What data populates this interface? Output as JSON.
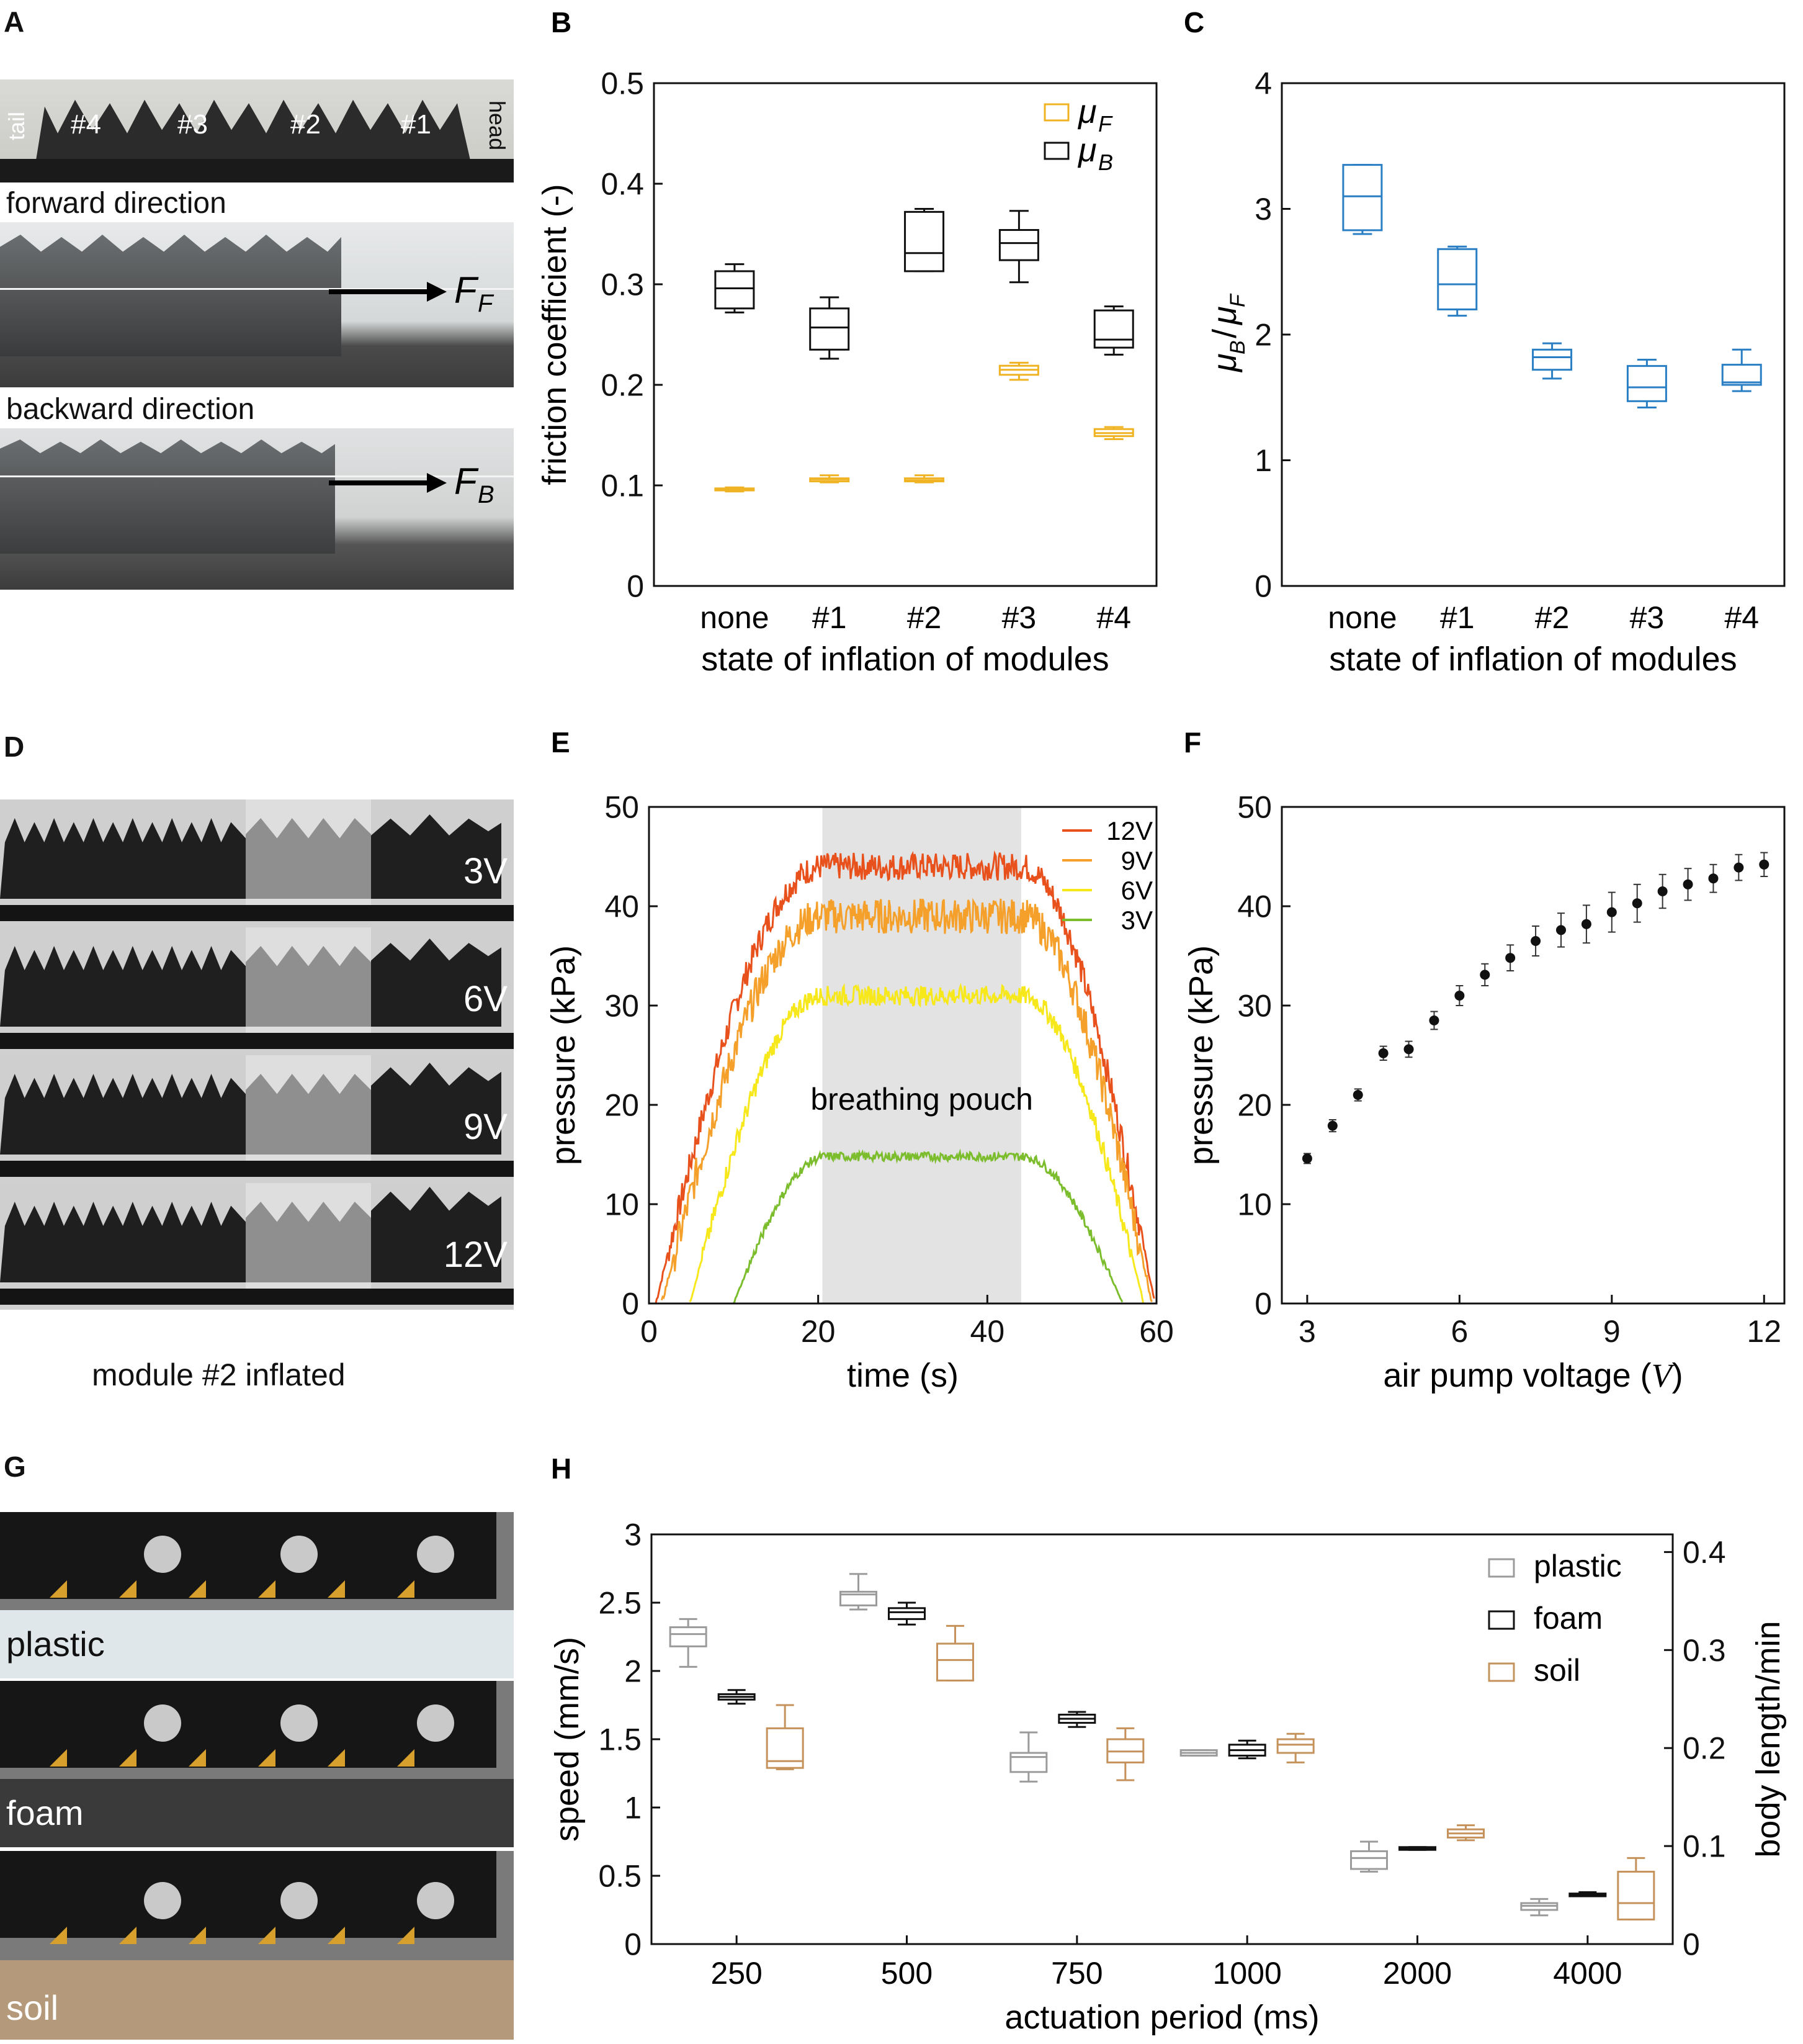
{
  "panels": {
    "A": {
      "letter": "A",
      "labels": {
        "tail": "tail",
        "head": "head",
        "m4": "#4",
        "m3": "#3",
        "m2": "#2",
        "m1": "#1",
        "forward": "forward direction",
        "backward": "backward direction",
        "ff_sym": "F",
        "ff_sub": "F",
        "fb_sym": "F",
        "fb_sub": "B"
      }
    },
    "D": {
      "letter": "D",
      "rows": [
        "3V",
        "6V",
        "9V",
        "12V"
      ],
      "caption": "module #2 inflated"
    },
    "G": {
      "letter": "G",
      "rows": [
        "plastic",
        "foam",
        "soil"
      ]
    }
  },
  "chart_data": [
    {
      "id": "B",
      "letter": "B",
      "type": "box",
      "xlabel": "state of inflation of modules",
      "ylabel": "friction coefficient (-)",
      "categories": [
        "none",
        "#1",
        "#2",
        "#3",
        "#4"
      ],
      "ylim": [
        0,
        0.5
      ],
      "yticks": [
        "0",
        "0.1",
        "0.2",
        "0.3",
        "0.4",
        "0.5"
      ],
      "ytick_values": [
        0,
        0.1,
        0.2,
        0.3,
        0.4,
        0.5
      ],
      "legend": [
        {
          "sym": "μ",
          "sub": "F",
          "color": "#f0b323"
        },
        {
          "sym": "μ",
          "sub": "B",
          "color": "#111111"
        }
      ],
      "legend_position": "top-right",
      "series": [
        {
          "color": "#f0b323",
          "boxes": [
            {
              "min": 0.094,
              "q1": 0.095,
              "med": 0.096,
              "q3": 0.097,
              "max": 0.098
            },
            {
              "min": 0.103,
              "q1": 0.104,
              "med": 0.106,
              "q3": 0.107,
              "max": 0.11
            },
            {
              "min": 0.103,
              "q1": 0.104,
              "med": 0.105,
              "q3": 0.107,
              "max": 0.11
            },
            {
              "min": 0.205,
              "q1": 0.21,
              "med": 0.215,
              "q3": 0.219,
              "max": 0.222
            },
            {
              "min": 0.146,
              "q1": 0.149,
              "med": 0.152,
              "q3": 0.156,
              "max": 0.158
            }
          ]
        },
        {
          "color": "#111111",
          "boxes": [
            {
              "min": 0.272,
              "q1": 0.276,
              "med": 0.296,
              "q3": 0.313,
              "max": 0.32
            },
            {
              "min": 0.226,
              "q1": 0.235,
              "med": 0.257,
              "q3": 0.276,
              "max": 0.287
            },
            {
              "min": 0.313,
              "q1": 0.313,
              "med": 0.331,
              "q3": 0.372,
              "max": 0.375
            },
            {
              "min": 0.302,
              "q1": 0.324,
              "med": 0.341,
              "q3": 0.354,
              "max": 0.373
            },
            {
              "min": 0.23,
              "q1": 0.237,
              "med": 0.245,
              "q3": 0.274,
              "max": 0.278
            }
          ]
        }
      ]
    },
    {
      "id": "C",
      "letter": "C",
      "type": "box",
      "xlabel": "state of inflation of modules",
      "ylabel_sym": "μ",
      "ylabel_num_sub": "B",
      "ylabel_den_sub": "F",
      "categories": [
        "none",
        "#1",
        "#2",
        "#3",
        "#4"
      ],
      "ylim": [
        0,
        4
      ],
      "yticks": [
        "0",
        "1",
        "2",
        "3",
        "4"
      ],
      "ytick_values": [
        0,
        1,
        2,
        3,
        4
      ],
      "series": [
        {
          "color": "#2a7fc4",
          "boxes": [
            {
              "min": 2.8,
              "q1": 2.83,
              "med": 3.1,
              "q3": 3.35,
              "max": 3.35
            },
            {
              "min": 2.15,
              "q1": 2.2,
              "med": 2.4,
              "q3": 2.68,
              "max": 2.7
            },
            {
              "min": 1.65,
              "q1": 1.72,
              "med": 1.82,
              "q3": 1.88,
              "max": 1.93
            },
            {
              "min": 1.42,
              "q1": 1.47,
              "med": 1.58,
              "q3": 1.75,
              "max": 1.8
            },
            {
              "min": 1.55,
              "q1": 1.6,
              "med": 1.62,
              "q3": 1.76,
              "max": 1.88
            }
          ]
        }
      ]
    },
    {
      "id": "E",
      "letter": "E",
      "type": "line",
      "xlabel": "time (s)",
      "ylabel": "pressure (kPa)",
      "xlim": [
        0,
        60
      ],
      "ylim": [
        0,
        50
      ],
      "xticks": [
        "0",
        "20",
        "40",
        "60"
      ],
      "xtick_values": [
        0,
        20,
        40,
        60
      ],
      "yticks": [
        "0",
        "10",
        "20",
        "30",
        "40",
        "50"
      ],
      "ytick_values": [
        0,
        10,
        20,
        30,
        40,
        50
      ],
      "shaded_region": {
        "x0": 20.5,
        "x1": 44,
        "label": "breathing pouch"
      },
      "legend_position": "top-right",
      "series": [
        {
          "name": "12V",
          "color": "#e8501c",
          "plateau": 44,
          "noise": 1.4,
          "t_start": 0.8,
          "t_rise": 20.5,
          "t_fall": 44,
          "t_end": 59.8
        },
        {
          "name": "9V",
          "color": "#f5a02a",
          "plateau": 39,
          "noise": 1.8,
          "t_start": 1.5,
          "t_rise": 20.5,
          "t_fall": 44,
          "t_end": 59.5
        },
        {
          "name": "6V",
          "color": "#f7e81c",
          "plateau": 31,
          "noise": 1.0,
          "t_start": 4.8,
          "t_rise": 20.5,
          "t_fall": 44,
          "t_end": 58.5
        },
        {
          "name": "3V",
          "color": "#7bbd2c",
          "plateau": 14.8,
          "noise": 0.45,
          "t_start": 10,
          "t_rise": 21,
          "t_fall": 44,
          "t_end": 56
        }
      ]
    },
    {
      "id": "F",
      "letter": "F",
      "type": "scatter",
      "xlabel_text": "air pump voltage (",
      "xlabel_var": "V",
      "xlabel_close": ")",
      "ylabel": "pressure (kPa)",
      "xlim": [
        2.5,
        12.4
      ],
      "ylim": [
        0,
        50
      ],
      "xticks": [
        "3",
        "6",
        "9",
        "12"
      ],
      "xtick_values": [
        3,
        6,
        9,
        12
      ],
      "yticks": [
        "0",
        "10",
        "20",
        "30",
        "40",
        "50"
      ],
      "ytick_values": [
        0,
        10,
        20,
        30,
        40,
        50
      ],
      "points": [
        {
          "x": 3.0,
          "y": 14.6,
          "err": 0.5
        },
        {
          "x": 3.5,
          "y": 17.9,
          "err": 0.6
        },
        {
          "x": 4.0,
          "y": 21.0,
          "err": 0.6
        },
        {
          "x": 4.5,
          "y": 25.2,
          "err": 0.7
        },
        {
          "x": 5.0,
          "y": 25.6,
          "err": 0.8
        },
        {
          "x": 5.5,
          "y": 28.5,
          "err": 0.9
        },
        {
          "x": 6.0,
          "y": 31.0,
          "err": 1.0
        },
        {
          "x": 6.5,
          "y": 33.1,
          "err": 1.1
        },
        {
          "x": 7.0,
          "y": 34.8,
          "err": 1.3
        },
        {
          "x": 7.5,
          "y": 36.5,
          "err": 1.5
        },
        {
          "x": 8.0,
          "y": 37.6,
          "err": 1.7
        },
        {
          "x": 8.5,
          "y": 38.2,
          "err": 1.9
        },
        {
          "x": 9.0,
          "y": 39.4,
          "err": 2.0
        },
        {
          "x": 9.5,
          "y": 40.3,
          "err": 1.9
        },
        {
          "x": 10.0,
          "y": 41.5,
          "err": 1.7
        },
        {
          "x": 10.5,
          "y": 42.2,
          "err": 1.6
        },
        {
          "x": 11.0,
          "y": 42.8,
          "err": 1.4
        },
        {
          "x": 11.5,
          "y": 43.9,
          "err": 1.3
        },
        {
          "x": 12.0,
          "y": 44.2,
          "err": 1.2
        }
      ]
    },
    {
      "id": "H",
      "letter": "H",
      "type": "box",
      "xlabel": "actuation period (ms)",
      "ylabel": "speed (mm/s)",
      "ylabel_right": "body length/min",
      "categories": [
        "250",
        "500",
        "750",
        "1000",
        "2000",
        "4000"
      ],
      "ylim": [
        0,
        3
      ],
      "yticks": [
        "0",
        "0.5",
        "1",
        "1.5",
        "2",
        "2.5",
        "3"
      ],
      "ytick_values": [
        0,
        0.5,
        1,
        1.5,
        2,
        2.5,
        3
      ],
      "ylim_right": [
        0,
        0.418
      ],
      "yticks_right": [
        "0",
        "0.1",
        "0.2",
        "0.3",
        "0.4"
      ],
      "ytick_values_right": [
        0,
        0.1,
        0.2,
        0.3,
        0.4
      ],
      "legend_position": "top-right",
      "series": [
        {
          "name": "plastic",
          "color": "#9b9b9b",
          "boxes": [
            {
              "min": 2.03,
              "q1": 2.18,
              "med": 2.27,
              "q3": 2.32,
              "max": 2.38
            },
            {
              "min": 2.45,
              "q1": 2.48,
              "med": 2.56,
              "q3": 2.58,
              "max": 2.71
            },
            {
              "min": 1.19,
              "q1": 1.26,
              "med": 1.37,
              "q3": 1.4,
              "max": 1.55
            },
            {
              "min": 1.38,
              "q1": 1.38,
              "med": 1.4,
              "q3": 1.42,
              "max": 1.42
            },
            {
              "min": 0.53,
              "q1": 0.55,
              "med": 0.63,
              "q3": 0.68,
              "max": 0.75
            },
            {
              "min": 0.21,
              "q1": 0.25,
              "med": 0.28,
              "q3": 0.3,
              "max": 0.33
            }
          ]
        },
        {
          "name": "foam",
          "color": "#111111",
          "boxes": [
            {
              "min": 1.76,
              "q1": 1.79,
              "med": 1.81,
              "q3": 1.83,
              "max": 1.86
            },
            {
              "min": 2.34,
              "q1": 2.38,
              "med": 2.43,
              "q3": 2.46,
              "max": 2.5
            },
            {
              "min": 1.59,
              "q1": 1.62,
              "med": 1.65,
              "q3": 1.68,
              "max": 1.7
            },
            {
              "min": 1.36,
              "q1": 1.38,
              "med": 1.42,
              "q3": 1.46,
              "max": 1.49
            },
            {
              "min": 0.69,
              "q1": 0.69,
              "med": 0.7,
              "q3": 0.71,
              "max": 0.71
            },
            {
              "min": 0.35,
              "q1": 0.35,
              "med": 0.36,
              "q3": 0.37,
              "max": 0.38
            }
          ]
        },
        {
          "name": "soil",
          "color": "#c6925c",
          "boxes": [
            {
              "min": 1.28,
              "q1": 1.29,
              "med": 1.34,
              "q3": 1.58,
              "max": 1.75
            },
            {
              "min": 1.93,
              "q1": 1.93,
              "med": 2.08,
              "q3": 2.2,
              "max": 2.33
            },
            {
              "min": 1.2,
              "q1": 1.33,
              "med": 1.41,
              "q3": 1.5,
              "max": 1.58
            },
            {
              "min": 1.33,
              "q1": 1.4,
              "med": 1.46,
              "q3": 1.5,
              "max": 1.54
            },
            {
              "min": 0.76,
              "q1": 0.78,
              "med": 0.81,
              "q3": 0.84,
              "max": 0.87
            },
            {
              "min": 0.18,
              "q1": 0.18,
              "med": 0.3,
              "q3": 0.53,
              "max": 0.63
            }
          ]
        }
      ]
    }
  ]
}
